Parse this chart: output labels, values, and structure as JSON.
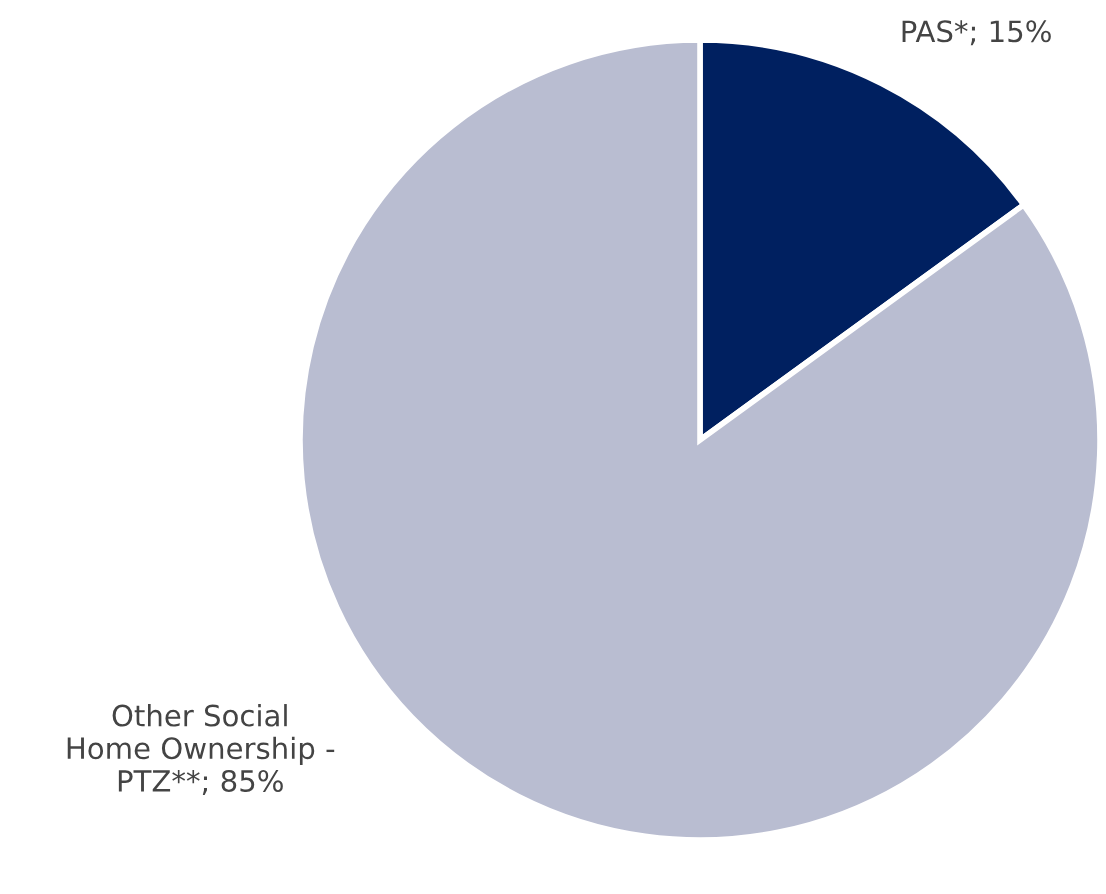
{
  "chart_data": {
    "type": "pie",
    "categories": [
      "PAS*",
      "Other Social\nHome Ownership -\nPTZ**"
    ],
    "values": [
      15,
      85
    ],
    "value_labels": [
      "15%",
      "85%"
    ],
    "colors": [
      "#002060",
      "#b9bdd1"
    ],
    "legend": false
  }
}
